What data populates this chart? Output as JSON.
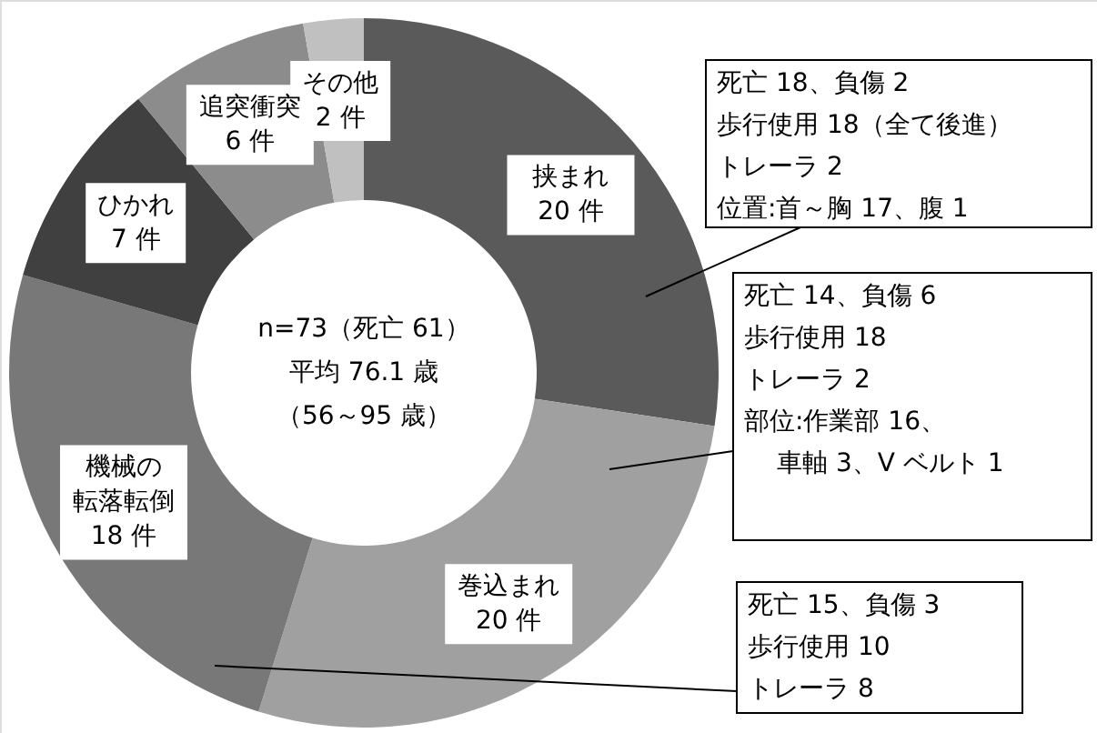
{
  "chart_data": {
    "type": "donut",
    "categories": [
      "挟まれ",
      "巻込まれ",
      "機械の転落転倒",
      "ひかれ",
      "追突衝突",
      "その他"
    ],
    "values": [
      20,
      20,
      18,
      7,
      6,
      2
    ],
    "value_labels": [
      "20 件",
      "20 件",
      "18 件",
      "7 件",
      "6 件",
      "2 件"
    ],
    "colors": [
      "#5a5a5a",
      "#a0a0a0",
      "#787878",
      "#404040",
      "#8c8c8c",
      "#c0c0c0"
    ],
    "annotations": [
      "n=73（死亡 61）",
      "平均 76.1 歳",
      "（56～95 歳）",
      "死亡 18、負傷 2",
      "歩行使用 18（全て後進）",
      "トレーラ 2",
      "位置:首～胸 17、腹 1",
      "死亡 14、負傷 6",
      "歩行使用 18",
      "トレーラ 2",
      "部位:作業部 16、",
      "車軸 3、V ベルト 1",
      "死亡 15、負傷 3",
      "歩行使用 10",
      "トレーラ 8"
    ]
  }
}
